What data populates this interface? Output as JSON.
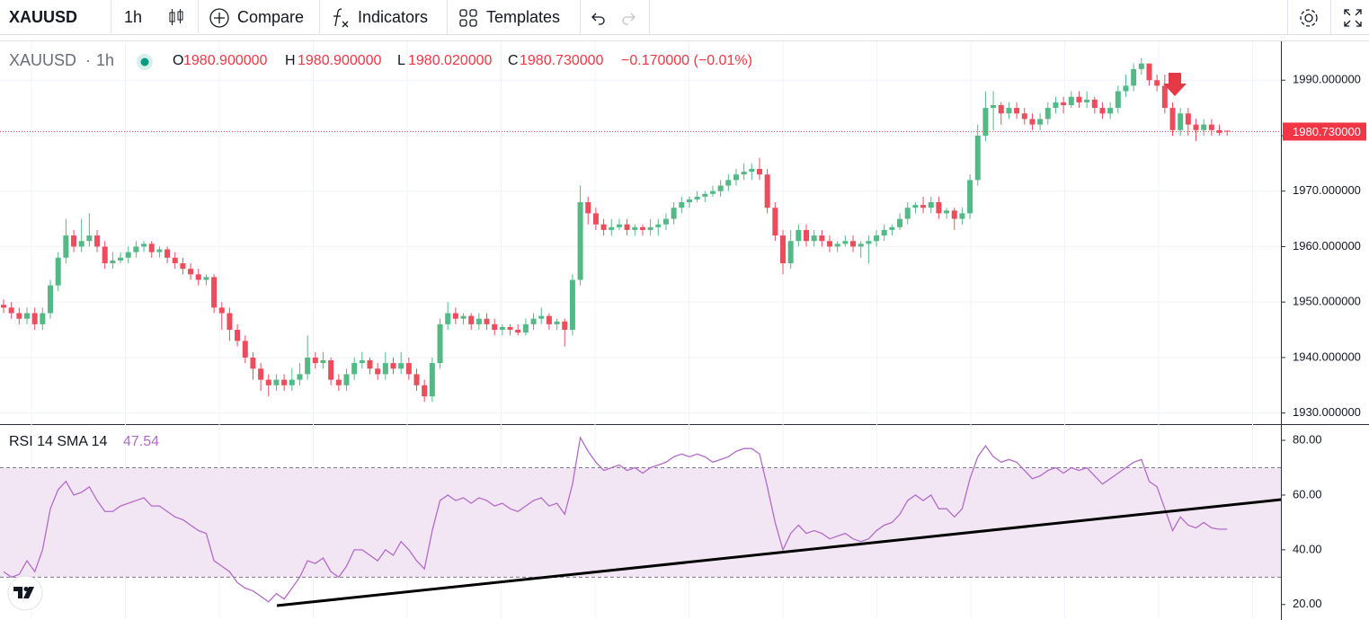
{
  "toolbar": {
    "symbol": "XAUUSD",
    "interval": "1h",
    "compare": "Compare",
    "indicators": "Indicators",
    "templates": "Templates"
  },
  "legend": {
    "symbol": "XAUUSD",
    "interval": "1h",
    "items": [
      {
        "key": "O",
        "value": "1980.900000"
      },
      {
        "key": "H",
        "value": "1980.900000"
      },
      {
        "key": "L",
        "value": "1980.020000"
      },
      {
        "key": "C",
        "value": "1980.730000"
      }
    ],
    "change": "−0.170000 (−0.01%)"
  },
  "chart_data": [
    {
      "type": "candlestick",
      "up_color": "#53b987",
      "down_color": "#eb4d5c",
      "ylim": [
        1928,
        1997
      ],
      "yticks": [
        {
          "value": 1930,
          "label": "1930.000000"
        },
        {
          "value": 1940,
          "label": "1940.000000"
        },
        {
          "value": 1950,
          "label": "1950.000000"
        },
        {
          "value": 1960,
          "label": "1960.000000"
        },
        {
          "value": 1970,
          "label": "1970.000000"
        },
        {
          "value": 1980,
          "label": "1980.000000"
        },
        {
          "value": 1990,
          "label": "1990.000000"
        }
      ],
      "grid": true,
      "last_price": {
        "value": 1980.73,
        "label": "1980.730000"
      },
      "open": [
        1949.5,
        1949,
        1948,
        1947,
        1948,
        1946,
        1948,
        1953,
        1958,
        1962,
        1960,
        1961,
        1962,
        1960,
        1957,
        1957.5,
        1958,
        1959,
        1960,
        1960.5,
        1959,
        1959.5,
        1958,
        1957,
        1956,
        1955,
        1954,
        1954.5,
        1949,
        1948,
        1945,
        1943,
        1940,
        1938,
        1936,
        1935,
        1936,
        1935,
        1936,
        1937,
        1940,
        1939,
        1939.5,
        1936,
        1935,
        1937,
        1939,
        1939.5,
        1938,
        1937,
        1939,
        1938,
        1939,
        1937,
        1935,
        1933,
        1939,
        1946,
        1948,
        1947,
        1947.5,
        1946,
        1947,
        1946,
        1945,
        1945.5,
        1945,
        1944.5,
        1946,
        1947,
        1947.5,
        1946,
        1946.5,
        1945,
        1954,
        1968,
        1966,
        1964,
        1963,
        1963.5,
        1964,
        1963,
        1963.5,
        1963,
        1963.5,
        1964,
        1965,
        1967,
        1968,
        1968.5,
        1969,
        1969.5,
        1970,
        1971,
        1972,
        1973,
        1973.5,
        1974,
        1973,
        1967,
        1962,
        1957,
        1961,
        1963,
        1961,
        1962,
        1961,
        1960,
        1960.5,
        1961,
        1960,
        1960.5,
        1961,
        1962,
        1963,
        1963.5,
        1965,
        1967,
        1967.5,
        1967,
        1968,
        1966,
        1966.5,
        1965,
        1966,
        1972,
        1980,
        1985,
        1985.5,
        1984,
        1985,
        1984,
        1983,
        1982,
        1983,
        1985,
        1986,
        1985.5,
        1987,
        1986,
        1986.5,
        1985,
        1984,
        1985,
        1988,
        1989,
        1992,
        1993,
        1990,
        1989,
        1985,
        1981,
        1984,
        1982,
        1981,
        1982,
        1981,
        1980.9
      ],
      "high": [
        1950.5,
        1950,
        1949,
        1949,
        1949,
        1949,
        1954,
        1959,
        1965,
        1963,
        1965,
        1966,
        1963,
        1961,
        1959,
        1959,
        1960,
        1961,
        1961,
        1961,
        1960,
        1960,
        1959,
        1958,
        1957,
        1956,
        1955,
        1955,
        1950,
        1949,
        1946,
        1944,
        1941,
        1939,
        1937,
        1937,
        1937,
        1938,
        1939,
        1944,
        1941,
        1941,
        1940,
        1937,
        1938,
        1940,
        1941,
        1940,
        1939,
        1941,
        1940,
        1941,
        1940,
        1938,
        1936,
        1940,
        1947,
        1950,
        1949,
        1948,
        1948,
        1948,
        1948,
        1947,
        1946,
        1946,
        1946,
        1947,
        1948,
        1949,
        1948,
        1947,
        1947,
        1955,
        1971,
        1969,
        1967,
        1965,
        1965,
        1965,
        1965,
        1964,
        1964,
        1965,
        1965,
        1966,
        1968,
        1969,
        1969,
        1970,
        1970,
        1971,
        1972,
        1973,
        1974,
        1975,
        1975,
        1976,
        1974,
        1968,
        1963,
        1963,
        1964,
        1964,
        1963,
        1963,
        1962,
        1961,
        1962,
        1962,
        1961,
        1962,
        1963,
        1964,
        1964,
        1966,
        1968,
        1968,
        1969,
        1969,
        1969,
        1967,
        1967,
        1967,
        1973,
        1982,
        1988,
        1988,
        1986,
        1986,
        1986,
        1985,
        1984,
        1984,
        1986,
        1987,
        1987,
        1988,
        1988,
        1988,
        1987,
        1986,
        1986,
        1989,
        1991,
        1993,
        1994,
        1993,
        1991,
        1991,
        1986,
        1985,
        1985,
        1983,
        1983,
        1983,
        1982,
        1980.9
      ],
      "low": [
        1948,
        1947,
        1946,
        1946,
        1945,
        1945,
        1947,
        1952,
        1957,
        1959,
        1959,
        1960,
        1959,
        1956,
        1956,
        1957,
        1957,
        1958,
        1959,
        1958,
        1958,
        1957,
        1956,
        1955,
        1954,
        1953,
        1953,
        1948,
        1945,
        1943,
        1942,
        1939,
        1936,
        1934,
        1933,
        1934,
        1934,
        1934,
        1935,
        1936,
        1938,
        1938,
        1935,
        1934,
        1934,
        1936,
        1938,
        1937,
        1936,
        1936,
        1937,
        1937,
        1936,
        1934,
        1932,
        1932,
        1938,
        1945,
        1946,
        1946,
        1945,
        1945,
        1945,
        1944,
        1944,
        1944,
        1944,
        1944,
        1945,
        1946,
        1945,
        1945,
        1942,
        1944,
        1953,
        1964,
        1963,
        1962,
        1962,
        1963,
        1962,
        1962,
        1962,
        1962,
        1962,
        1963,
        1964,
        1966,
        1967,
        1968,
        1968,
        1969,
        1969,
        1970,
        1971,
        1972,
        1972,
        1972,
        1966,
        1961,
        1955,
        1956,
        1960,
        1960,
        1960,
        1960,
        1959,
        1959,
        1960,
        1959,
        1958,
        1957,
        1960,
        1961,
        1962,
        1963,
        1964,
        1966,
        1966,
        1966,
        1965,
        1965,
        1963,
        1964,
        1965,
        1971,
        1979,
        1981,
        1982,
        1983,
        1983,
        1982,
        1981,
        1981,
        1982,
        1984,
        1984,
        1985,
        1985,
        1985,
        1984,
        1983,
        1983,
        1984,
        1987,
        1988,
        1991,
        1989,
        1988,
        1984,
        1980,
        1980,
        1980,
        1979,
        1980,
        1980,
        1980,
        1980.02
      ],
      "close": [
        1949,
        1948,
        1947,
        1948,
        1946,
        1948,
        1953,
        1958,
        1962,
        1960,
        1961,
        1962,
        1960,
        1957,
        1957.5,
        1958,
        1959,
        1960,
        1960.5,
        1959,
        1959.5,
        1958,
        1957,
        1956,
        1955,
        1954,
        1954.5,
        1949,
        1948,
        1945,
        1943,
        1940,
        1938,
        1936,
        1935,
        1936,
        1935,
        1936,
        1937,
        1940,
        1939,
        1939.5,
        1936,
        1935,
        1937,
        1939,
        1939.5,
        1938,
        1937,
        1939,
        1938,
        1939,
        1937,
        1935,
        1933,
        1939,
        1946,
        1948,
        1947,
        1947.5,
        1946,
        1947,
        1946,
        1945,
        1945.5,
        1945,
        1944.5,
        1946,
        1947,
        1947.5,
        1946,
        1946.5,
        1945,
        1954,
        1968,
        1966,
        1964,
        1963,
        1963.5,
        1964,
        1963,
        1963.5,
        1963,
        1963.5,
        1964,
        1965,
        1967,
        1968,
        1968.5,
        1969,
        1969.5,
        1970,
        1971,
        1972,
        1973,
        1973.5,
        1974,
        1973,
        1967,
        1962,
        1957,
        1961,
        1963,
        1961,
        1962,
        1961,
        1960,
        1960.5,
        1961,
        1960,
        1960.5,
        1961,
        1962,
        1963,
        1963.5,
        1965,
        1967,
        1967.5,
        1967,
        1968,
        1966,
        1966.5,
        1965,
        1966,
        1972,
        1980,
        1985,
        1985.5,
        1984,
        1985,
        1984,
        1983,
        1982,
        1983,
        1985,
        1986,
        1985.5,
        1987,
        1986,
        1986.5,
        1985,
        1984,
        1985,
        1988,
        1989,
        1992,
        1993,
        1990,
        1989,
        1985,
        1981,
        1984,
        1982,
        1981,
        1982,
        1981,
        1980.5,
        1980.73
      ]
    },
    {
      "type": "line",
      "ylim": [
        15,
        85.6
      ],
      "yticks": [
        {
          "value": 20,
          "label": "20.00"
        },
        {
          "value": 40,
          "label": "40.00"
        },
        {
          "value": 60,
          "label": "60.00"
        },
        {
          "value": 80,
          "label": "80.00"
        }
      ],
      "bands": [
        30,
        70
      ],
      "band_color": "#f3e6f4",
      "series": [
        {
          "name": "RSI 14 SMA 14",
          "color": "#b26bc8",
          "values": [
            32,
            30,
            31,
            36,
            32,
            40,
            55,
            62,
            65,
            60,
            61,
            63,
            58,
            54,
            54,
            56,
            57,
            58,
            59,
            56,
            56,
            54,
            52,
            51,
            49,
            47,
            46,
            36,
            34,
            32,
            28,
            26,
            25,
            23,
            21,
            24,
            22,
            26,
            30,
            36,
            35,
            37,
            32,
            30,
            34,
            40,
            40,
            38,
            36,
            40,
            38,
            43,
            40,
            36,
            33,
            47,
            58,
            60,
            58,
            59,
            57,
            59,
            58,
            56,
            57,
            55,
            54,
            56,
            58,
            59,
            56,
            57,
            53,
            64,
            81,
            76,
            72,
            69,
            70,
            71,
            69,
            70,
            68,
            70,
            71,
            72,
            74,
            75,
            74,
            75,
            74,
            72,
            73,
            74,
            76,
            77,
            77,
            75,
            63,
            50,
            40,
            46,
            49,
            46,
            47,
            46,
            44,
            45,
            46,
            44,
            43,
            44,
            47,
            49,
            50,
            53,
            58,
            60,
            58,
            60,
            55,
            55,
            52,
            55,
            66,
            74,
            78,
            74,
            72,
            73,
            72,
            69,
            66,
            67,
            69,
            70,
            68,
            70,
            69,
            70,
            67,
            64,
            66,
            68,
            70,
            72,
            73,
            65,
            63,
            55,
            47,
            52,
            49,
            48,
            50,
            48,
            47.5,
            47.54
          ]
        }
      ]
    }
  ]
}
